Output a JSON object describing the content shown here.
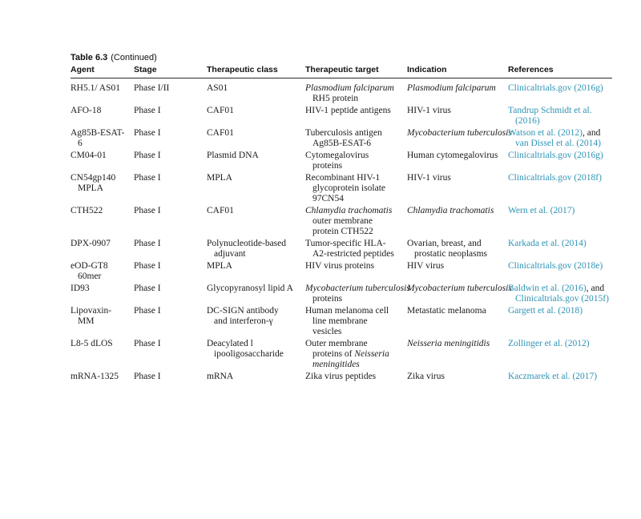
{
  "table": {
    "title_bold": "Table 6.3",
    "title_note": "(Continued)",
    "link_color": "#2e93b5",
    "text_color": "#1a1a1a",
    "columns": [
      "Agent",
      "Stage",
      "Therapeutic class",
      "Therapeutic target",
      "Indication",
      "References"
    ],
    "rows": [
      {
        "agent": [
          [
            {
              "t": "RH5.1/ AS01"
            }
          ]
        ],
        "stage": [
          [
            {
              "t": "Phase I/II"
            }
          ]
        ],
        "class": [
          [
            {
              "t": "AS01"
            }
          ]
        ],
        "target": [
          [
            {
              "t": "Plasmodium falciparum",
              "i": true
            }
          ],
          [
            {
              "t": "RH5 protein"
            }
          ]
        ],
        "indication": [
          [
            {
              "t": "Plasmodium falciparum",
              "i": true
            }
          ]
        ],
        "references": [
          [
            {
              "t": "Clinicaltrials.gov (2016g)",
              "link": true
            }
          ]
        ]
      },
      {
        "agent": [
          [
            {
              "t": "AFO-18"
            }
          ]
        ],
        "stage": [
          [
            {
              "t": "Phase I"
            }
          ]
        ],
        "class": [
          [
            {
              "t": "CAF01"
            }
          ]
        ],
        "target": [
          [
            {
              "t": "HIV-1 peptide antigens"
            }
          ]
        ],
        "indication": [
          [
            {
              "t": "HIV-1 virus"
            }
          ]
        ],
        "references": [
          [
            {
              "t": "Tandrup Schmidt et al.",
              "link": true
            }
          ],
          [
            {
              "t": "(2016)",
              "link": true
            }
          ]
        ]
      },
      {
        "agent": [
          [
            {
              "t": "Ag85B-ESAT-"
            }
          ],
          [
            {
              "t": "6"
            }
          ]
        ],
        "stage": [
          [
            {
              "t": "Phase I"
            }
          ]
        ],
        "class": [
          [
            {
              "t": "CAF01"
            }
          ]
        ],
        "target": [
          [
            {
              "t": "Tuberculosis antigen"
            }
          ],
          [
            {
              "t": "Ag85B-ESAT-6"
            }
          ]
        ],
        "indication": [
          [
            {
              "t": "Mycobacterium tuberculosis",
              "i": true
            }
          ]
        ],
        "references": [
          [
            {
              "t": "Watson et al. (2012)",
              "link": true
            },
            {
              "t": ", and"
            }
          ],
          [
            {
              "t": "van Dissel et al. (2014)",
              "link": true
            }
          ]
        ]
      },
      {
        "agent": [
          [
            {
              "t": "CM04-01"
            }
          ]
        ],
        "stage": [
          [
            {
              "t": "Phase I"
            }
          ]
        ],
        "class": [
          [
            {
              "t": "Plasmid DNA"
            }
          ]
        ],
        "target": [
          [
            {
              "t": "Cytomegalovirus"
            }
          ],
          [
            {
              "t": "proteins"
            }
          ]
        ],
        "indication": [
          [
            {
              "t": "Human cytomegalovirus"
            }
          ]
        ],
        "references": [
          [
            {
              "t": "Clinicaltrials.gov (2016g)",
              "link": true
            }
          ]
        ]
      },
      {
        "agent": [
          [
            {
              "t": "CN54gp140"
            }
          ],
          [
            {
              "t": "MPLA"
            }
          ]
        ],
        "stage": [
          [
            {
              "t": "Phase I"
            }
          ]
        ],
        "class": [
          [
            {
              "t": "MPLA"
            }
          ]
        ],
        "target": [
          [
            {
              "t": "Recombinant HIV-1"
            }
          ],
          [
            {
              "t": "glycoprotein isolate"
            }
          ],
          [
            {
              "t": "97CN54"
            }
          ]
        ],
        "indication": [
          [
            {
              "t": "HIV-1 virus"
            }
          ]
        ],
        "references": [
          [
            {
              "t": "Clinicaltrials.gov (2018f)",
              "link": true
            }
          ]
        ]
      },
      {
        "agent": [
          [
            {
              "t": "CTH522"
            }
          ]
        ],
        "stage": [
          [
            {
              "t": "Phase I"
            }
          ]
        ],
        "class": [
          [
            {
              "t": "CAF01"
            }
          ]
        ],
        "target": [
          [
            {
              "t": "Chlamydia trachomatis",
              "i": true
            }
          ],
          [
            {
              "t": "outer membrane"
            }
          ],
          [
            {
              "t": "protein CTH522"
            }
          ]
        ],
        "indication": [
          [
            {
              "t": "Chlamydia trachomatis",
              "i": true
            }
          ]
        ],
        "references": [
          [
            {
              "t": "Wern et al. (2017)",
              "link": true
            }
          ]
        ]
      },
      {
        "agent": [
          [
            {
              "t": "DPX-0907"
            }
          ]
        ],
        "stage": [
          [
            {
              "t": "Phase I"
            }
          ]
        ],
        "class": [
          [
            {
              "t": "Polynucleotide-based"
            }
          ],
          [
            {
              "t": "adjuvant"
            }
          ]
        ],
        "target": [
          [
            {
              "t": "Tumor-specific HLA-"
            }
          ],
          [
            {
              "t": "A2-restricted peptides"
            }
          ]
        ],
        "indication": [
          [
            {
              "t": "Ovarian, breast, and"
            }
          ],
          [
            {
              "t": "prostatic neoplasms"
            }
          ]
        ],
        "references": [
          [
            {
              "t": "Karkada et al. (2014)",
              "link": true
            }
          ]
        ]
      },
      {
        "agent": [
          [
            {
              "t": "eOD-GT8"
            }
          ],
          [
            {
              "t": "60mer"
            }
          ]
        ],
        "stage": [
          [
            {
              "t": "Phase I"
            }
          ]
        ],
        "class": [
          [
            {
              "t": "MPLA"
            }
          ]
        ],
        "target": [
          [
            {
              "t": "HIV virus proteins"
            }
          ]
        ],
        "indication": [
          [
            {
              "t": "HIV virus"
            }
          ]
        ],
        "references": [
          [
            {
              "t": "Clinicaltrials.gov (2018e)",
              "link": true
            }
          ]
        ]
      },
      {
        "agent": [
          [
            {
              "t": "ID93"
            }
          ]
        ],
        "stage": [
          [
            {
              "t": "Phase I"
            }
          ]
        ],
        "class": [
          [
            {
              "t": "Glycopyranosyl lipid A"
            }
          ]
        ],
        "target": [
          [
            {
              "t": "Mycobacterium tuberculosis",
              "i": true
            }
          ],
          [
            {
              "t": "proteins"
            }
          ]
        ],
        "indication": [
          [
            {
              "t": "Mycobacterium tuberculosis",
              "i": true
            }
          ]
        ],
        "references": [
          [
            {
              "t": "Baldwin et al. (2016)",
              "link": true
            },
            {
              "t": ", and"
            }
          ],
          [
            {
              "t": "Clinicaltrials.gov (2015f)",
              "link": true
            }
          ]
        ]
      },
      {
        "agent": [
          [
            {
              "t": "Lipovaxin-"
            }
          ],
          [
            {
              "t": "MM"
            }
          ]
        ],
        "stage": [
          [
            {
              "t": "Phase I"
            }
          ]
        ],
        "class": [
          [
            {
              "t": "DC-SIGN antibody"
            }
          ],
          [
            {
              "t": "and interferon-γ"
            }
          ]
        ],
        "target": [
          [
            {
              "t": "Human melanoma cell"
            }
          ],
          [
            {
              "t": "line membrane"
            }
          ],
          [
            {
              "t": "vesicles"
            }
          ]
        ],
        "indication": [
          [
            {
              "t": "Metastatic melanoma"
            }
          ]
        ],
        "references": [
          [
            {
              "t": "Gargett et al. (2018)",
              "link": true
            }
          ]
        ]
      },
      {
        "agent": [
          [
            {
              "t": "L8-5 dLOS"
            }
          ]
        ],
        "stage": [
          [
            {
              "t": "Phase I"
            }
          ]
        ],
        "class": [
          [
            {
              "t": "Deacylated l"
            }
          ],
          [
            {
              "t": "ipooligosaccharide"
            }
          ]
        ],
        "target": [
          [
            {
              "t": "Outer membrane"
            }
          ],
          [
            {
              "t": "proteins of "
            },
            {
              "t": "Neisseria",
              "i": true
            }
          ],
          [
            {
              "t": "meningitides",
              "i": true
            }
          ]
        ],
        "indication": [
          [
            {
              "t": "Neisseria meningitidis",
              "i": true
            }
          ]
        ],
        "references": [
          [
            {
              "t": "Zollinger et al. (2012)",
              "link": true
            }
          ]
        ]
      },
      {
        "agent": [
          [
            {
              "t": "mRNA-1325"
            }
          ]
        ],
        "stage": [
          [
            {
              "t": "Phase I"
            }
          ]
        ],
        "class": [
          [
            {
              "t": "mRNA"
            }
          ]
        ],
        "target": [
          [
            {
              "t": "Zika virus peptides"
            }
          ]
        ],
        "indication": [
          [
            {
              "t": "Zika virus"
            }
          ]
        ],
        "references": [
          [
            {
              "t": "Kaczmarek et al. (2017)",
              "link": true
            }
          ]
        ]
      }
    ]
  }
}
